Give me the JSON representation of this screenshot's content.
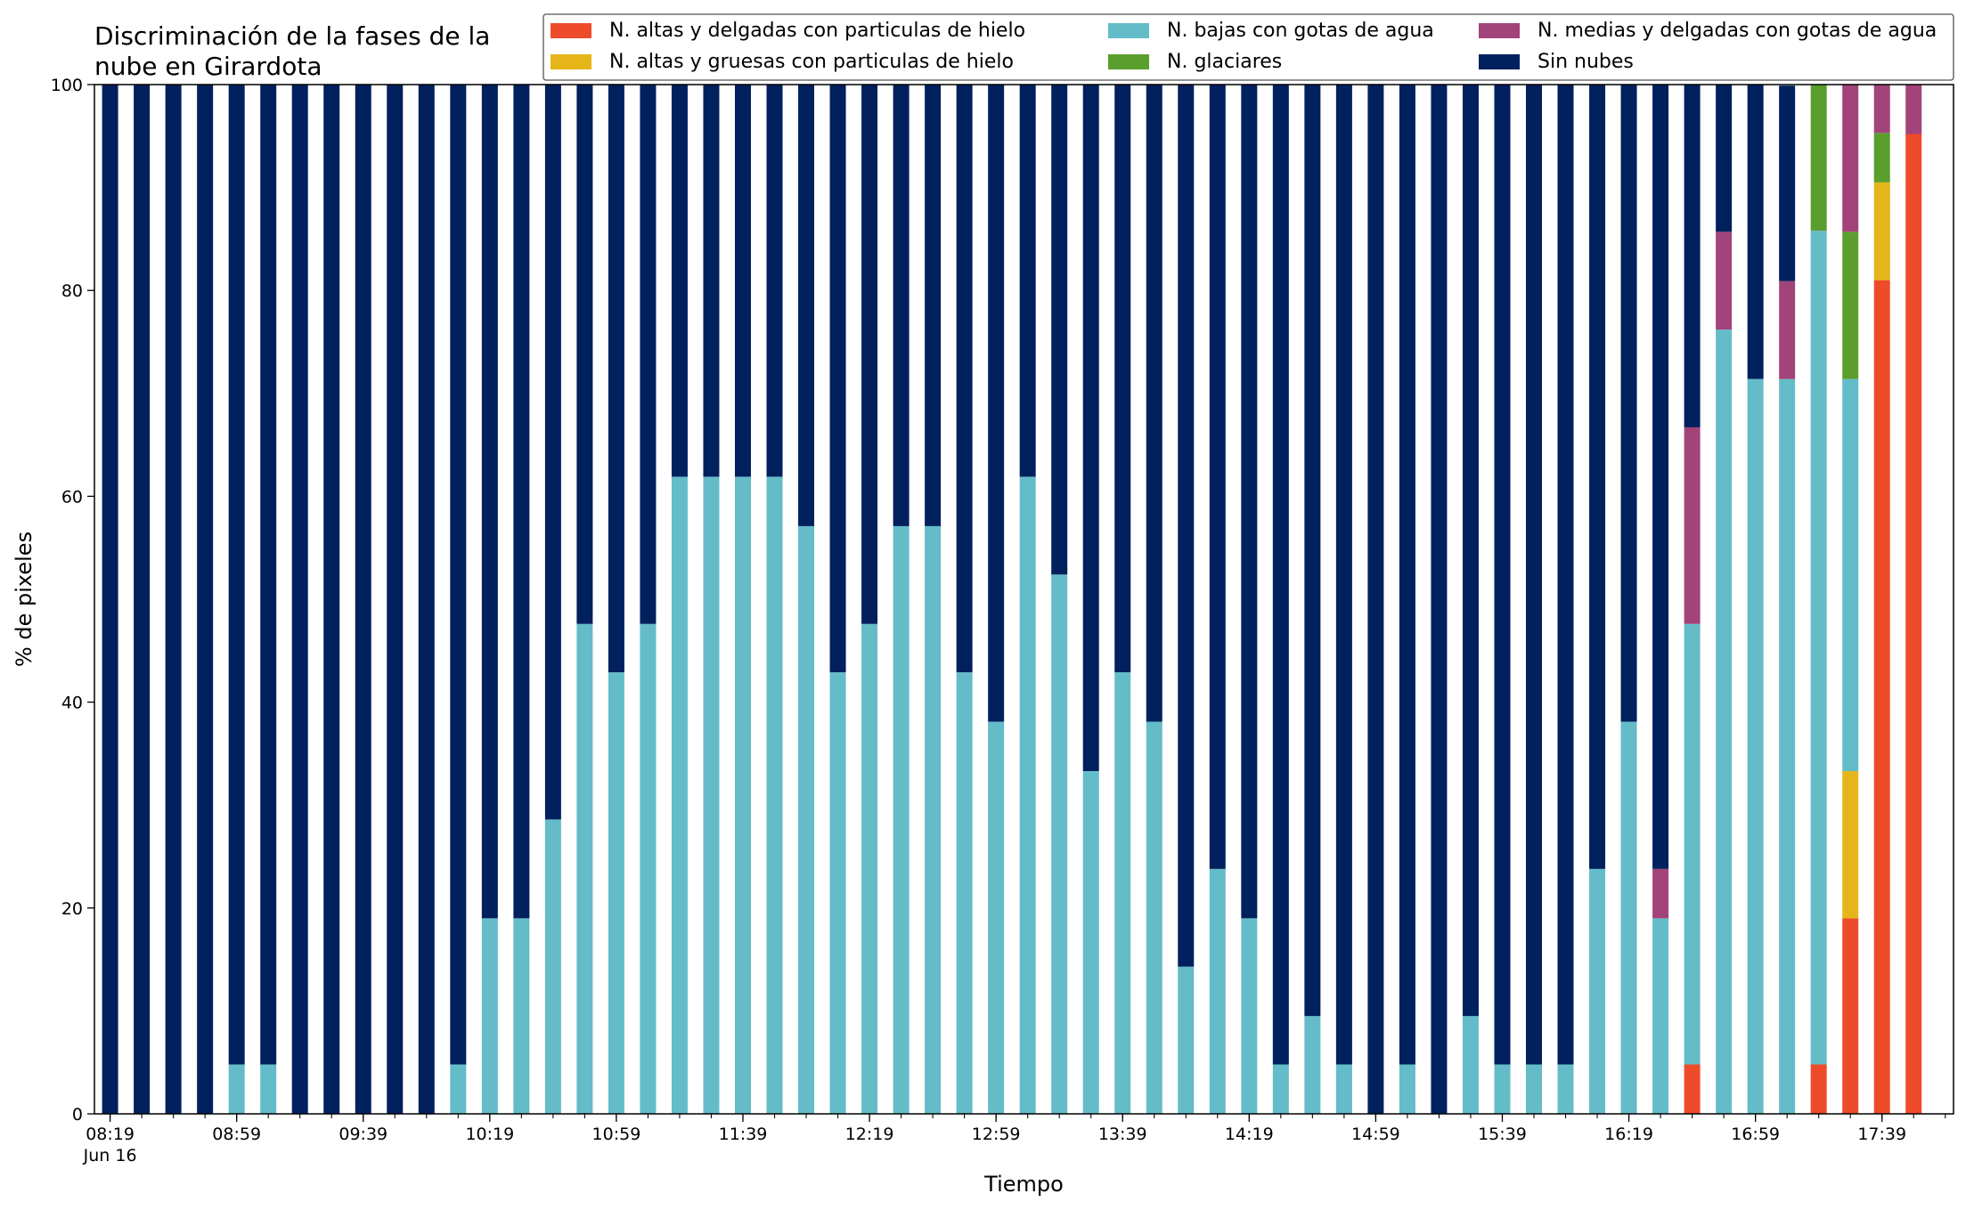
{
  "chart_data": {
    "type": "bar",
    "stacked": true,
    "title": [
      "Discriminación de la fases de la",
      "nube en Girardota"
    ],
    "xlabel": "Tiempo",
    "ylabel": "% de pixeles",
    "ylim": [
      0,
      100
    ],
    "yticks": [
      0,
      20,
      40,
      60,
      80,
      100
    ],
    "grid": false,
    "legend_position": "top-right",
    "x_tick_labels": [
      {
        "index": 0,
        "label": "08:19"
      },
      {
        "index": 4,
        "label": "08:59"
      },
      {
        "index": 8,
        "label": "09:39"
      },
      {
        "index": 12,
        "label": "10:19"
      },
      {
        "index": 16,
        "label": "10:59"
      },
      {
        "index": 20,
        "label": "11:39"
      },
      {
        "index": 24,
        "label": "12:19"
      },
      {
        "index": 28,
        "label": "12:59"
      },
      {
        "index": 32,
        "label": "13:39"
      },
      {
        "index": 36,
        "label": "14:19"
      },
      {
        "index": 40,
        "label": "14:59"
      },
      {
        "index": 44,
        "label": "15:39"
      },
      {
        "index": 48,
        "label": "16:19"
      },
      {
        "index": 52,
        "label": "16:59"
      },
      {
        "index": 56,
        "label": "17:39"
      }
    ],
    "x_sub_label": "Jun 16",
    "categories": [
      "08:19",
      "08:29",
      "08:39",
      "08:49",
      "08:59",
      "09:09",
      "09:19",
      "09:29",
      "09:39",
      "09:49",
      "09:59",
      "10:09",
      "10:19",
      "10:29",
      "10:39",
      "10:49",
      "10:59",
      "11:09",
      "11:19",
      "11:29",
      "11:39",
      "11:49",
      "11:59",
      "12:09",
      "12:19",
      "12:29",
      "12:39",
      "12:49",
      "12:59",
      "13:09",
      "13:19",
      "13:29",
      "13:39",
      "13:49",
      "13:59",
      "14:09",
      "14:19",
      "14:29",
      "14:39",
      "14:49",
      "14:59",
      "15:09",
      "15:19",
      "15:29",
      "15:39",
      "15:49",
      "15:59",
      "16:09",
      "16:19",
      "16:29",
      "16:39",
      "16:49",
      "16:59",
      "17:09",
      "17:19",
      "17:29",
      "17:39",
      "17:49"
    ],
    "series": [
      {
        "name": "N. altas y delgadas con particulas de hielo",
        "color": "#ee4b2b",
        "values": [
          0,
          0,
          0,
          0,
          0,
          0,
          0,
          0,
          0,
          0,
          0,
          0,
          0,
          0,
          0,
          0,
          0,
          0,
          0,
          0,
          0,
          0,
          0,
          0,
          0,
          0,
          0,
          0,
          0,
          0,
          0,
          0,
          0,
          0,
          0,
          0,
          0,
          0,
          0,
          0,
          0,
          0,
          0,
          0,
          0,
          0,
          0,
          0,
          0,
          0,
          4.8,
          0,
          0,
          0,
          4.8,
          19.0,
          81.0,
          95.2
        ]
      },
      {
        "name": "N. altas y gruesas con particulas de hielo",
        "color": "#e6b519",
        "values": [
          0,
          0,
          0,
          0,
          0,
          0,
          0,
          0,
          0,
          0,
          0,
          0,
          0,
          0,
          0,
          0,
          0,
          0,
          0,
          0,
          0,
          0,
          0,
          0,
          0,
          0,
          0,
          0,
          0,
          0,
          0,
          0,
          0,
          0,
          0,
          0,
          0,
          0,
          0,
          0,
          0,
          0,
          0,
          0,
          0,
          0,
          0,
          0,
          0,
          0,
          0,
          0,
          0,
          0,
          0,
          14.3,
          9.5,
          0
        ]
      },
      {
        "name": "N. bajas con gotas de agua",
        "color": "#64bcc8",
        "values": [
          0,
          0,
          0,
          0,
          4.8,
          4.8,
          0,
          0,
          0,
          0,
          0,
          4.8,
          19.0,
          19.0,
          28.6,
          47.6,
          42.9,
          47.6,
          61.9,
          61.9,
          61.9,
          61.9,
          57.1,
          42.9,
          47.6,
          57.1,
          57.1,
          42.9,
          38.1,
          61.9,
          52.4,
          33.3,
          42.9,
          38.1,
          14.3,
          23.8,
          19.0,
          4.8,
          9.5,
          4.8,
          0,
          4.8,
          0,
          9.5,
          4.8,
          4.8,
          4.8,
          23.8,
          38.1,
          19.0,
          42.8,
          76.2,
          71.4,
          71.4,
          81.0,
          38.1,
          0,
          0
        ]
      },
      {
        "name": "N. glaciares",
        "color": "#5a9e2d",
        "values": [
          0,
          0,
          0,
          0,
          0,
          0,
          0,
          0,
          0,
          0,
          0,
          0,
          0,
          0,
          0,
          0,
          0,
          0,
          0,
          0,
          0,
          0,
          0,
          0,
          0,
          0,
          0,
          0,
          0,
          0,
          0,
          0,
          0,
          0,
          0,
          0,
          0,
          0,
          0,
          0,
          0,
          0,
          0,
          0,
          0,
          0,
          0,
          0,
          0,
          0,
          0,
          0,
          0,
          0,
          14.2,
          14.3,
          4.8,
          0
        ]
      },
      {
        "name": "N. medias y delgadas con gotas de agua",
        "color": "#a2437a",
        "values": [
          0,
          0,
          0,
          0,
          0,
          0,
          0,
          0,
          0,
          0,
          0,
          0,
          0,
          0,
          0,
          0,
          0,
          0,
          0,
          0,
          0,
          0,
          0,
          0,
          0,
          0,
          0,
          0,
          0,
          0,
          0,
          0,
          0,
          0,
          0,
          0,
          0,
          0,
          0,
          0,
          0,
          0,
          0,
          0,
          0,
          0,
          0,
          0,
          0,
          4.8,
          19.1,
          9.5,
          0,
          9.5,
          0,
          14.3,
          4.7,
          4.8
        ]
      },
      {
        "name": "Sin nubes",
        "color": "#01205e",
        "values": [
          100,
          100,
          100,
          100,
          95.2,
          95.2,
          100,
          100,
          100,
          100,
          100,
          95.2,
          81.0,
          81.0,
          71.4,
          52.4,
          57.1,
          52.4,
          38.1,
          38.1,
          38.1,
          38.1,
          42.9,
          57.1,
          52.4,
          42.9,
          42.9,
          57.1,
          61.9,
          38.1,
          47.6,
          66.7,
          57.1,
          61.9,
          85.7,
          76.2,
          81.0,
          95.2,
          90.5,
          95.2,
          100,
          95.2,
          100,
          90.5,
          95.2,
          95.2,
          95.2,
          76.2,
          61.9,
          76.2,
          33.3,
          14.3,
          28.6,
          19.0,
          0,
          0,
          0,
          0
        ]
      }
    ]
  }
}
